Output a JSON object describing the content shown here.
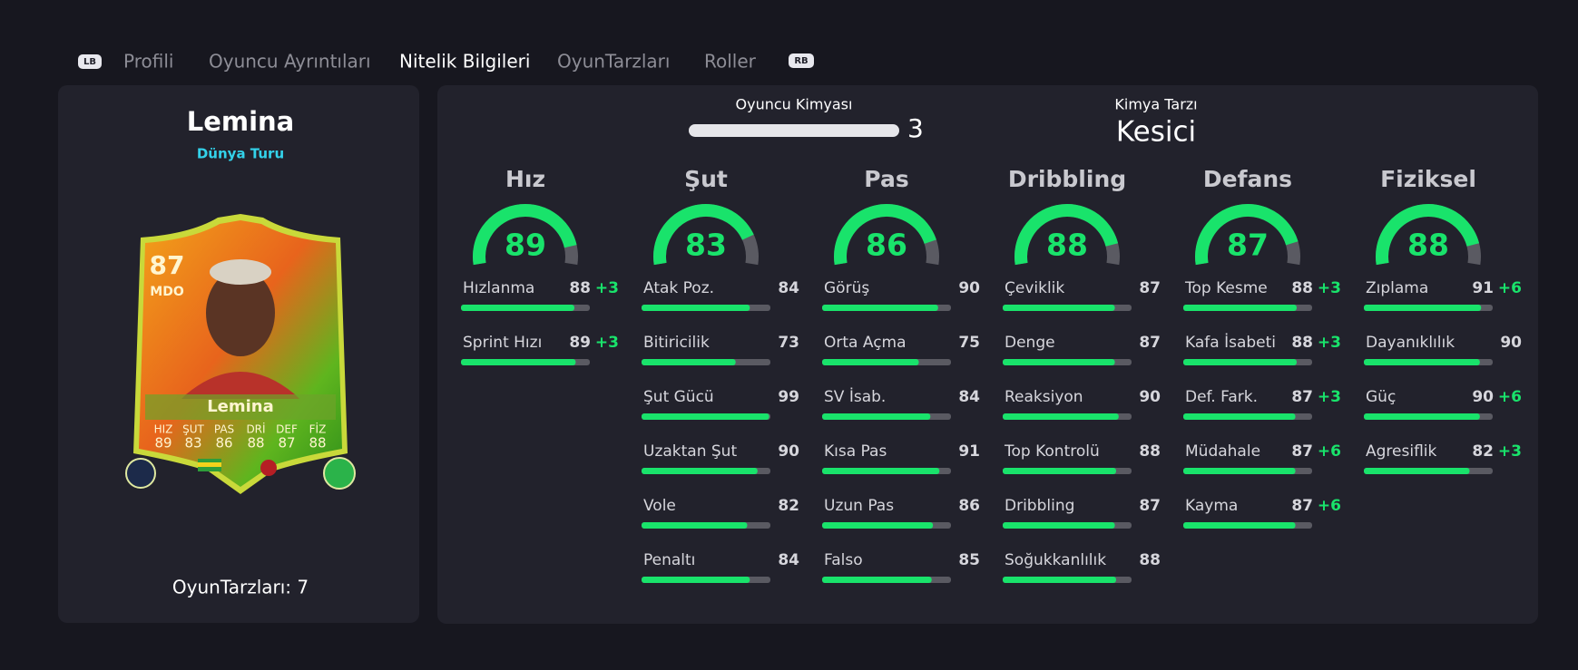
{
  "tabs": {
    "left_button": "LB",
    "items": [
      "Profili",
      "Oyuncu Ayrıntıları",
      "Nitelik Bilgileri",
      "OyunTarzları",
      "Roller"
    ],
    "active": 2,
    "right_button": "RB"
  },
  "player": {
    "name": "Lemina",
    "subtitle": "Dünya Turu",
    "playstyles": "OyunTarzları: 7",
    "card": {
      "rating": 87,
      "position": "MDO",
      "name": "Lemina",
      "stats": [
        {
          "label": "HIZ",
          "value": 89
        },
        {
          "label": "ŞUT",
          "value": 83
        },
        {
          "label": "PAS",
          "value": 86
        },
        {
          "label": "DRİ",
          "value": 88
        },
        {
          "label": "DEF",
          "value": 87
        },
        {
          "label": "FİZ",
          "value": 88
        }
      ]
    }
  },
  "chemistry": {
    "label": "Oyuncu Kimyası",
    "value": 3,
    "max": 3
  },
  "chemistry_style": {
    "label": "Kimya Tarzı",
    "value": "Kesici"
  },
  "scale": [
    0,
    100
  ],
  "categories": [
    {
      "name": "Hız",
      "value": 89,
      "stats": [
        {
          "name": "Hızlanma",
          "value": 88,
          "boost": "+3"
        },
        {
          "name": "Sprint Hızı",
          "value": 89,
          "boost": "+3"
        }
      ]
    },
    {
      "name": "Şut",
      "value": 83,
      "stats": [
        {
          "name": "Atak Poz.",
          "value": 84
        },
        {
          "name": "Bitiricilik",
          "value": 73
        },
        {
          "name": "Şut Gücü",
          "value": 99
        },
        {
          "name": "Uzaktan Şut",
          "value": 90
        },
        {
          "name": "Vole",
          "value": 82
        },
        {
          "name": "Penaltı",
          "value": 84
        }
      ]
    },
    {
      "name": "Pas",
      "value": 86,
      "stats": [
        {
          "name": "Görüş",
          "value": 90
        },
        {
          "name": "Orta Açma",
          "value": 75
        },
        {
          "name": "SV İsab.",
          "value": 84
        },
        {
          "name": "Kısa Pas",
          "value": 91
        },
        {
          "name": "Uzun Pas",
          "value": 86
        },
        {
          "name": "Falso",
          "value": 85
        }
      ]
    },
    {
      "name": "Dribbling",
      "value": 88,
      "stats": [
        {
          "name": "Çeviklik",
          "value": 87
        },
        {
          "name": "Denge",
          "value": 87
        },
        {
          "name": "Reaksiyon",
          "value": 90
        },
        {
          "name": "Top Kontrolü",
          "value": 88
        },
        {
          "name": "Dribbling",
          "value": 87
        },
        {
          "name": "Soğukkanlılık",
          "value": 88
        }
      ]
    },
    {
      "name": "Defans",
      "value": 87,
      "stats": [
        {
          "name": "Top Kesme",
          "value": 88,
          "boost": "+3"
        },
        {
          "name": "Kafa İsabeti",
          "value": 88,
          "boost": "+3"
        },
        {
          "name": "Def. Fark.",
          "value": 87,
          "boost": "+3"
        },
        {
          "name": "Müdahale",
          "value": 87,
          "boost": "+6"
        },
        {
          "name": "Kayma",
          "value": 87,
          "boost": "+6"
        }
      ]
    },
    {
      "name": "Fiziksel",
      "value": 88,
      "stats": [
        {
          "name": "Zıplama",
          "value": 91,
          "boost": "+6"
        },
        {
          "name": "Dayanıklılık",
          "value": 90
        },
        {
          "name": "Güç",
          "value": 90,
          "boost": "+6"
        },
        {
          "name": "Agresiflik",
          "value": 82,
          "boost": "+3"
        }
      ]
    }
  ]
}
